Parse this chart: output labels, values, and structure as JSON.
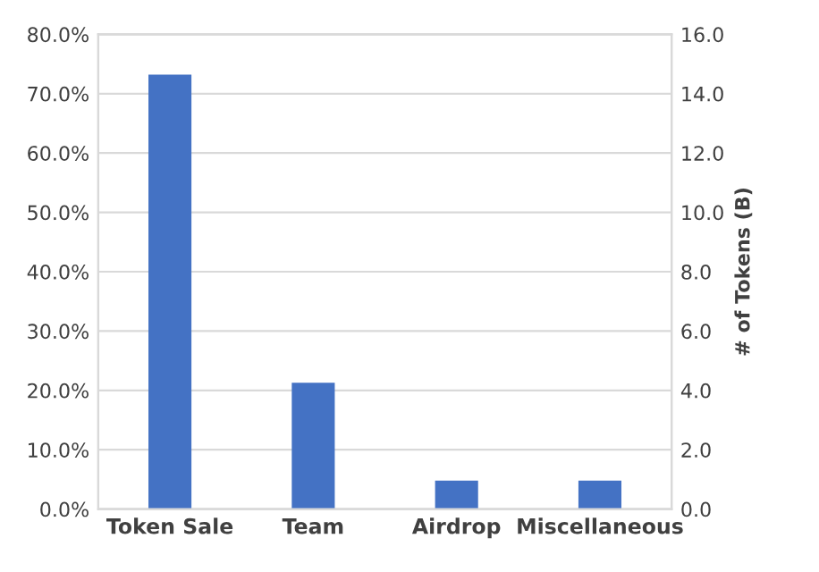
{
  "chart_data": {
    "type": "bar",
    "categories": [
      "Token Sale",
      "Team",
      "Airdrop",
      "Miscellaneous"
    ],
    "series": [
      {
        "color": "#4472c4",
        "values": [
          73.2,
          21.3,
          4.8,
          4.8
        ]
      }
    ],
    "ylim": [
      0,
      80
    ],
    "yticks": [
      {
        "value": 0,
        "label": "0.0%"
      },
      {
        "value": 10,
        "label": "10.0%"
      },
      {
        "value": 20,
        "label": "20.0%"
      },
      {
        "value": 30,
        "label": "30.0%"
      },
      {
        "value": 40,
        "label": "40.0%"
      },
      {
        "value": 50,
        "label": "50.0%"
      },
      {
        "value": 60,
        "label": "60.0%"
      },
      {
        "value": 70,
        "label": "70.0%"
      },
      {
        "value": 80,
        "label": "80.0%"
      }
    ],
    "y2lim": [
      0,
      16
    ],
    "y2ticks": [
      {
        "value": 0,
        "label": "0.0"
      },
      {
        "value": 2,
        "label": "2.0"
      },
      {
        "value": 4,
        "label": "4.0"
      },
      {
        "value": 6,
        "label": "6.0"
      },
      {
        "value": 8,
        "label": "8.0"
      },
      {
        "value": 10,
        "label": "10.0"
      },
      {
        "value": 12,
        "label": "12.0"
      },
      {
        "value": 14,
        "label": "14.0"
      },
      {
        "value": 16,
        "label": "16.0"
      }
    ],
    "y2label": "# of Tokens (B)",
    "grid": "y"
  }
}
